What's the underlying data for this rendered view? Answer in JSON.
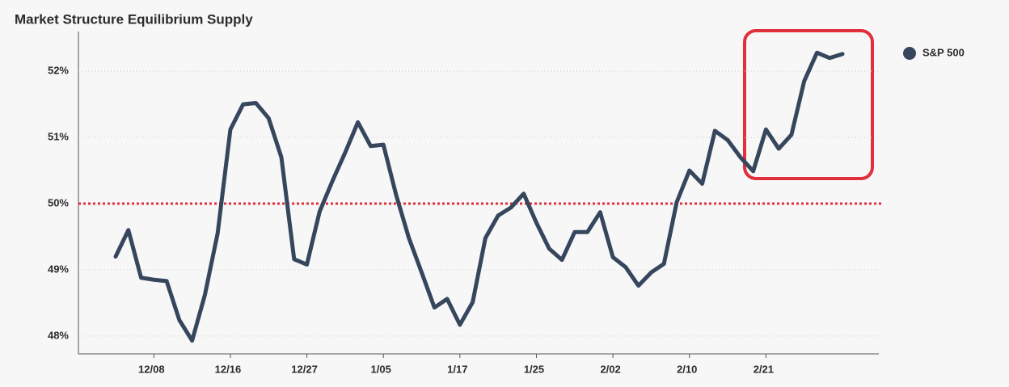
{
  "chart_data": {
    "type": "line",
    "title": "Market Structure Equilibrium Supply",
    "categories": [
      null,
      null,
      null,
      "12/08",
      null,
      null,
      null,
      null,
      null,
      "12/16",
      null,
      null,
      null,
      null,
      null,
      "12/27",
      null,
      null,
      null,
      null,
      null,
      "1/05",
      null,
      null,
      null,
      null,
      null,
      "1/17",
      null,
      null,
      null,
      null,
      null,
      "1/25",
      null,
      null,
      null,
      null,
      null,
      "2/02",
      null,
      null,
      null,
      null,
      null,
      "2/10",
      null,
      null,
      null,
      null,
      null,
      "2/21",
      null,
      null,
      null,
      null,
      null,
      null
    ],
    "series": [
      {
        "name": "S&P 500",
        "color": "#36465d",
        "values": [
          49.2,
          49.6,
          48.88,
          48.85,
          48.83,
          48.24,
          47.93,
          48.62,
          49.55,
          51.12,
          51.5,
          51.52,
          51.29,
          50.7,
          49.16,
          49.08,
          49.88,
          50.34,
          50.77,
          51.23,
          50.87,
          50.89,
          50.13,
          49.48,
          48.96,
          48.43,
          48.56,
          48.17,
          48.51,
          49.48,
          49.82,
          49.94,
          50.15,
          49.71,
          49.32,
          49.15,
          49.57,
          49.57,
          49.87,
          49.19,
          49.04,
          48.76,
          48.96,
          49.09,
          50.02,
          50.5,
          50.3,
          51.1,
          50.96,
          50.7,
          50.49,
          51.12,
          50.83,
          51.04,
          51.85,
          52.28,
          52.2,
          52.26
        ]
      }
    ],
    "ylim": [
      47.73,
      52.6
    ],
    "yticks": [
      {
        "value": 48,
        "label": "48%"
      },
      {
        "value": 49,
        "label": "49%"
      },
      {
        "value": 50,
        "label": "50%"
      },
      {
        "value": 51,
        "label": "51%"
      },
      {
        "value": 52,
        "label": "52%"
      }
    ],
    "grid": true,
    "reference_line": {
      "value": 50,
      "color": "#e0303e"
    },
    "legend": "top-right"
  }
}
